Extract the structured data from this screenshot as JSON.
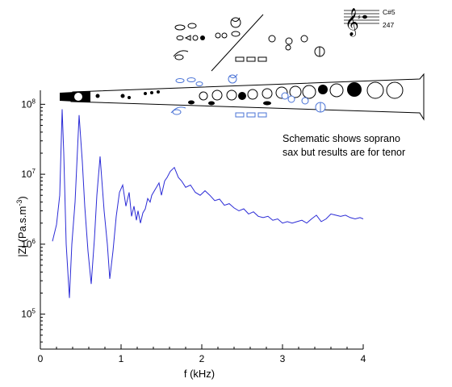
{
  "chart_data": {
    "type": "line",
    "xlabel": "f (kHz)",
    "ylabel": "|Z| (Pa.s.m",
    "ylabel_sup": "-3",
    "ylabel_close": ")",
    "xlim": [
      0,
      4
    ],
    "ylim_log10": [
      4.5,
      8.2
    ],
    "y_scale": "log",
    "x_ticks": [
      {
        "value": 0,
        "label": "0"
      },
      {
        "value": 1,
        "label": "1"
      },
      {
        "value": 2,
        "label": "2"
      },
      {
        "value": 3,
        "label": "3"
      },
      {
        "value": 4,
        "label": "4"
      }
    ],
    "y_ticks": [
      {
        "exp": 5,
        "base": "10",
        "sup": "5"
      },
      {
        "exp": 6,
        "base": "10",
        "sup": "6"
      },
      {
        "exp": 7,
        "base": "10",
        "sup": "7"
      },
      {
        "exp": 8,
        "base": "10",
        "sup": "8"
      }
    ],
    "grid": false,
    "series": [
      {
        "color": "#2b2bd6",
        "x": [
          0.15,
          0.2,
          0.24,
          0.27,
          0.29,
          0.32,
          0.36,
          0.39,
          0.43,
          0.48,
          0.52,
          0.55,
          0.59,
          0.63,
          0.67,
          0.7,
          0.74,
          0.79,
          0.83,
          0.86,
          0.9,
          0.94,
          0.98,
          1.02,
          1.06,
          1.1,
          1.13,
          1.16,
          1.19,
          1.21,
          1.24,
          1.27,
          1.3,
          1.33,
          1.36,
          1.38,
          1.42,
          1.47,
          1.5,
          1.54,
          1.57,
          1.61,
          1.66,
          1.71,
          1.75,
          1.8,
          1.86,
          1.92,
          1.98,
          2.04,
          2.1,
          2.16,
          2.22,
          2.28,
          2.34,
          2.4,
          2.46,
          2.52,
          2.58,
          2.64,
          2.7,
          2.76,
          2.82,
          2.88,
          2.94,
          3.0,
          3.06,
          3.12,
          3.18,
          3.24,
          3.3,
          3.36,
          3.42,
          3.48,
          3.54,
          3.6,
          3.66,
          3.72,
          3.78,
          3.84,
          3.9,
          3.96,
          4.0
        ],
        "y": [
          1100000.0,
          1900000.0,
          5000000.0,
          85000000.0,
          20000000.0,
          1000000.0,
          170000.0,
          1000000.0,
          4000000.0,
          70000000.0,
          15000000.0,
          3500000.0,
          800000.0,
          270000.0,
          1200000.0,
          5000000.0,
          18000000.0,
          3000000.0,
          1000000.0,
          320000.0,
          800000.0,
          2500000.0,
          5500000.0,
          7000000.0,
          3500000.0,
          5500000.0,
          2500000.0,
          3500000.0,
          2200000.0,
          3000000.0,
          2000000.0,
          2800000.0,
          3200000.0,
          4500000.0,
          4000000.0,
          5000000.0,
          6000000.0,
          7500000.0,
          5000000.0,
          8000000.0,
          9000000.0,
          11000000.0,
          12500000.0,
          9000000.0,
          8000000.0,
          6500000.0,
          7000000.0,
          5500000.0,
          5000000.0,
          5800000.0,
          5000000.0,
          4200000.0,
          4400000.0,
          3600000.0,
          3800000.0,
          3300000.0,
          3000000.0,
          3200000.0,
          2700000.0,
          2900000.0,
          2500000.0,
          2400000.0,
          2500000.0,
          2200000.0,
          2300000.0,
          2000000.0,
          2100000.0,
          2000000.0,
          2100000.0,
          2200000.0,
          2000000.0,
          2300000.0,
          2600000.0,
          2100000.0,
          2300000.0,
          2700000.0,
          2600000.0,
          2500000.0,
          2600000.0,
          2400000.0,
          2300000.0,
          2400000.0,
          2300000.0
        ]
      }
    ],
    "annotation": {
      "line1": "Schematic shows soprano",
      "line2": "sax but results are for tenor"
    },
    "note_name": "C#5",
    "fingering_code": "247"
  }
}
